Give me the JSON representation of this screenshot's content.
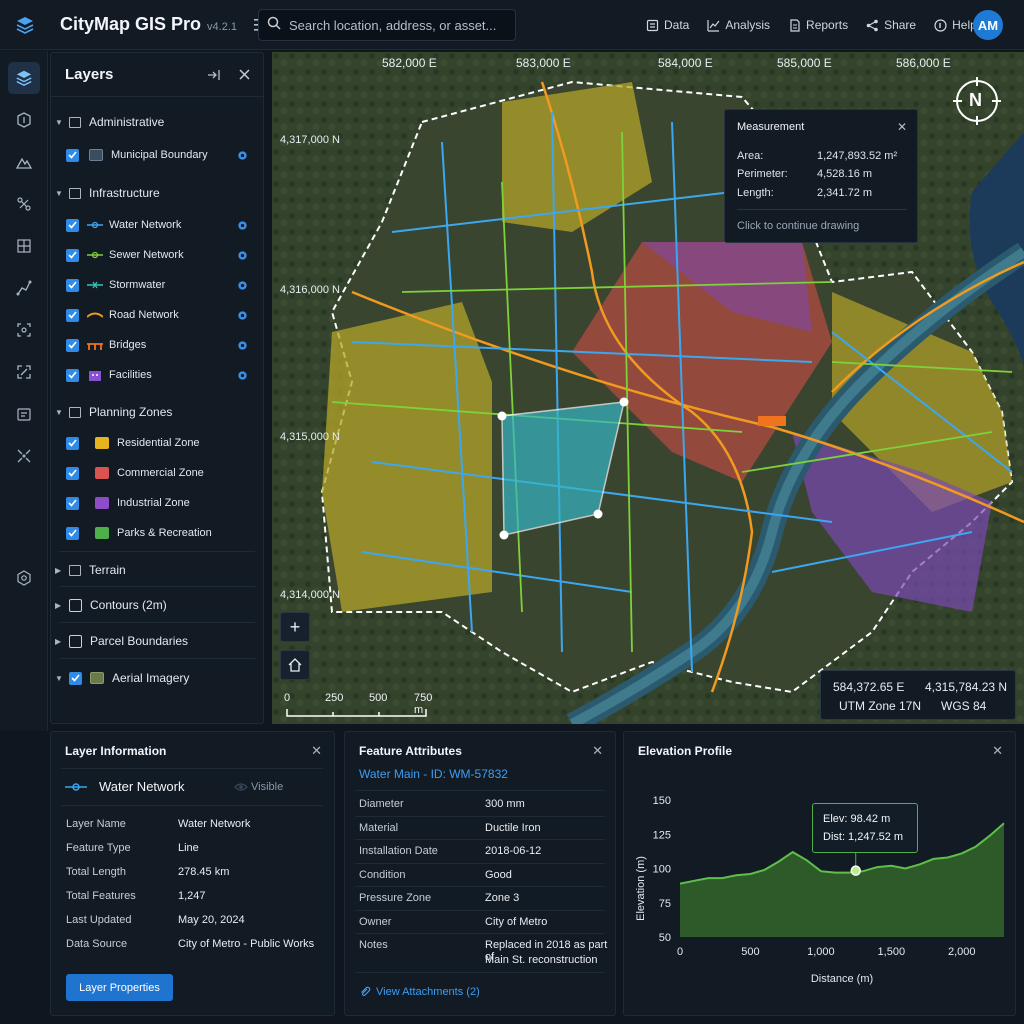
{
  "app": {
    "title": "CityMap GIS Pro",
    "version": "v4.2.1"
  },
  "search": {
    "placeholder": "Search location, address, or asset..."
  },
  "nav": [
    {
      "label": "Data",
      "icon": "data-icon"
    },
    {
      "label": "Analysis",
      "icon": "analysis-icon"
    },
    {
      "label": "Reports",
      "icon": "reports-icon"
    },
    {
      "label": "Share",
      "icon": "share-icon"
    },
    {
      "label": "Help",
      "icon": "help-icon"
    }
  ],
  "user": {
    "initials": "AM"
  },
  "layers_panel": {
    "title": "Layers",
    "groups": [
      {
        "label": "Administrative",
        "items": [
          {
            "label": "Municipal Boundary",
            "checked": true
          }
        ]
      },
      {
        "label": "Infrastructure",
        "items": [
          {
            "label": "Water Network",
            "checked": true
          },
          {
            "label": "Sewer Network",
            "checked": true
          },
          {
            "label": "Stormwater",
            "checked": true
          },
          {
            "label": "Road Network",
            "checked": true
          },
          {
            "label": "Bridges",
            "checked": true
          },
          {
            "label": "Facilities",
            "checked": true
          }
        ]
      },
      {
        "label": "Planning Zones",
        "items": [
          {
            "label": "Residential Zone",
            "checked": true,
            "color": "#e6b51e"
          },
          {
            "label": "Commercial Zone",
            "checked": true,
            "color": "#d9534f"
          },
          {
            "label": "Industrial Zone",
            "checked": true,
            "color": "#8e4cc7"
          },
          {
            "label": "Parks & Recreation",
            "checked": true,
            "color": "#4fb04a"
          }
        ]
      },
      {
        "label": "Terrain"
      },
      {
        "label": "Contours (2m)",
        "checked": false
      },
      {
        "label": "Parcel Boundaries",
        "checked": false
      },
      {
        "label": "Aerial Imagery",
        "checked": true
      }
    ]
  },
  "map": {
    "eastings": [
      "582,000 E",
      "583,000 E",
      "584,000 E",
      "585,000 E",
      "586,000 E"
    ],
    "northings": [
      "4,317,000 N",
      "4,316,000 N",
      "4,315,000 N",
      "4,314,000 N"
    ],
    "compass": "N",
    "scale_labels": [
      "0",
      "250",
      "500",
      "750 m"
    ],
    "cursor": {
      "easting": "584,372.65 E",
      "northing": "4,315,784.23 N",
      "zone": "UTM Zone 17N",
      "datum": "WGS 84"
    },
    "zoom_in": "+"
  },
  "measurement": {
    "title": "Measurement",
    "area_label": "Area:",
    "area": "1,247,893.52 m²",
    "perimeter_label": "Perimeter:",
    "perimeter": "4,528.16 m",
    "length_label": "Length:",
    "length": "2,341.72 m",
    "note": "Click to continue drawing"
  },
  "layer_info": {
    "title": "Layer Information",
    "layer": "Water Network",
    "visibility": "Visible",
    "rows": [
      {
        "k": "Layer Name",
        "v": "Water Network"
      },
      {
        "k": "Feature Type",
        "v": "Line"
      },
      {
        "k": "Total Length",
        "v": "278.45 km"
      },
      {
        "k": "Total Features",
        "v": "1,247"
      },
      {
        "k": "Last Updated",
        "v": "May 20, 2024"
      },
      {
        "k": "Data Source",
        "v": "City of Metro - Public Works"
      }
    ],
    "button": "Layer Properties"
  },
  "feature": {
    "title": "Feature Attributes",
    "name": "Water Main - ID: WM-57832",
    "rows": [
      {
        "k": "Diameter",
        "v": "300 mm"
      },
      {
        "k": "Material",
        "v": "Ductile Iron"
      },
      {
        "k": "Installation Date",
        "v": "2018-06-12"
      },
      {
        "k": "Condition",
        "v": "Good"
      },
      {
        "k": "Pressure Zone",
        "v": "Zone 3"
      },
      {
        "k": "Owner",
        "v": "City of Metro"
      },
      {
        "k": "Notes",
        "v": "Replaced in 2018 as part of",
        "v2": "Main St. reconstruction"
      }
    ],
    "link": "View Attachments (2)"
  },
  "elevation": {
    "title": "Elevation Profile",
    "tooltip_elev": "Elev: 98.42 m",
    "tooltip_dist": "Dist: 1,247.52 m"
  },
  "chart_data": {
    "type": "area",
    "xlabel": "Distance (m)",
    "ylabel": "Elevation (m)",
    "xlim": [
      0,
      2300
    ],
    "ylim": [
      50,
      150
    ],
    "xticks": [
      0,
      500,
      1000,
      1500,
      2000
    ],
    "xtick_labels": [
      "0",
      "500",
      "1,000",
      "1,500",
      "2,000"
    ],
    "yticks": [
      150,
      125,
      100,
      75,
      50
    ],
    "x": [
      0,
      100,
      200,
      300,
      400,
      500,
      600,
      700,
      800,
      900,
      1000,
      1100,
      1200,
      1300,
      1400,
      1500,
      1600,
      1700,
      1800,
      1900,
      2000,
      2100,
      2200,
      2300
    ],
    "y": [
      89,
      91,
      93,
      93,
      95,
      96,
      99,
      105,
      112,
      106,
      98,
      97,
      97,
      98,
      101,
      102,
      100,
      103,
      107,
      108,
      111,
      116,
      124,
      133
    ],
    "highlight": {
      "x": 1247.52,
      "y": 98.42
    },
    "color": "#5fbf4a"
  }
}
